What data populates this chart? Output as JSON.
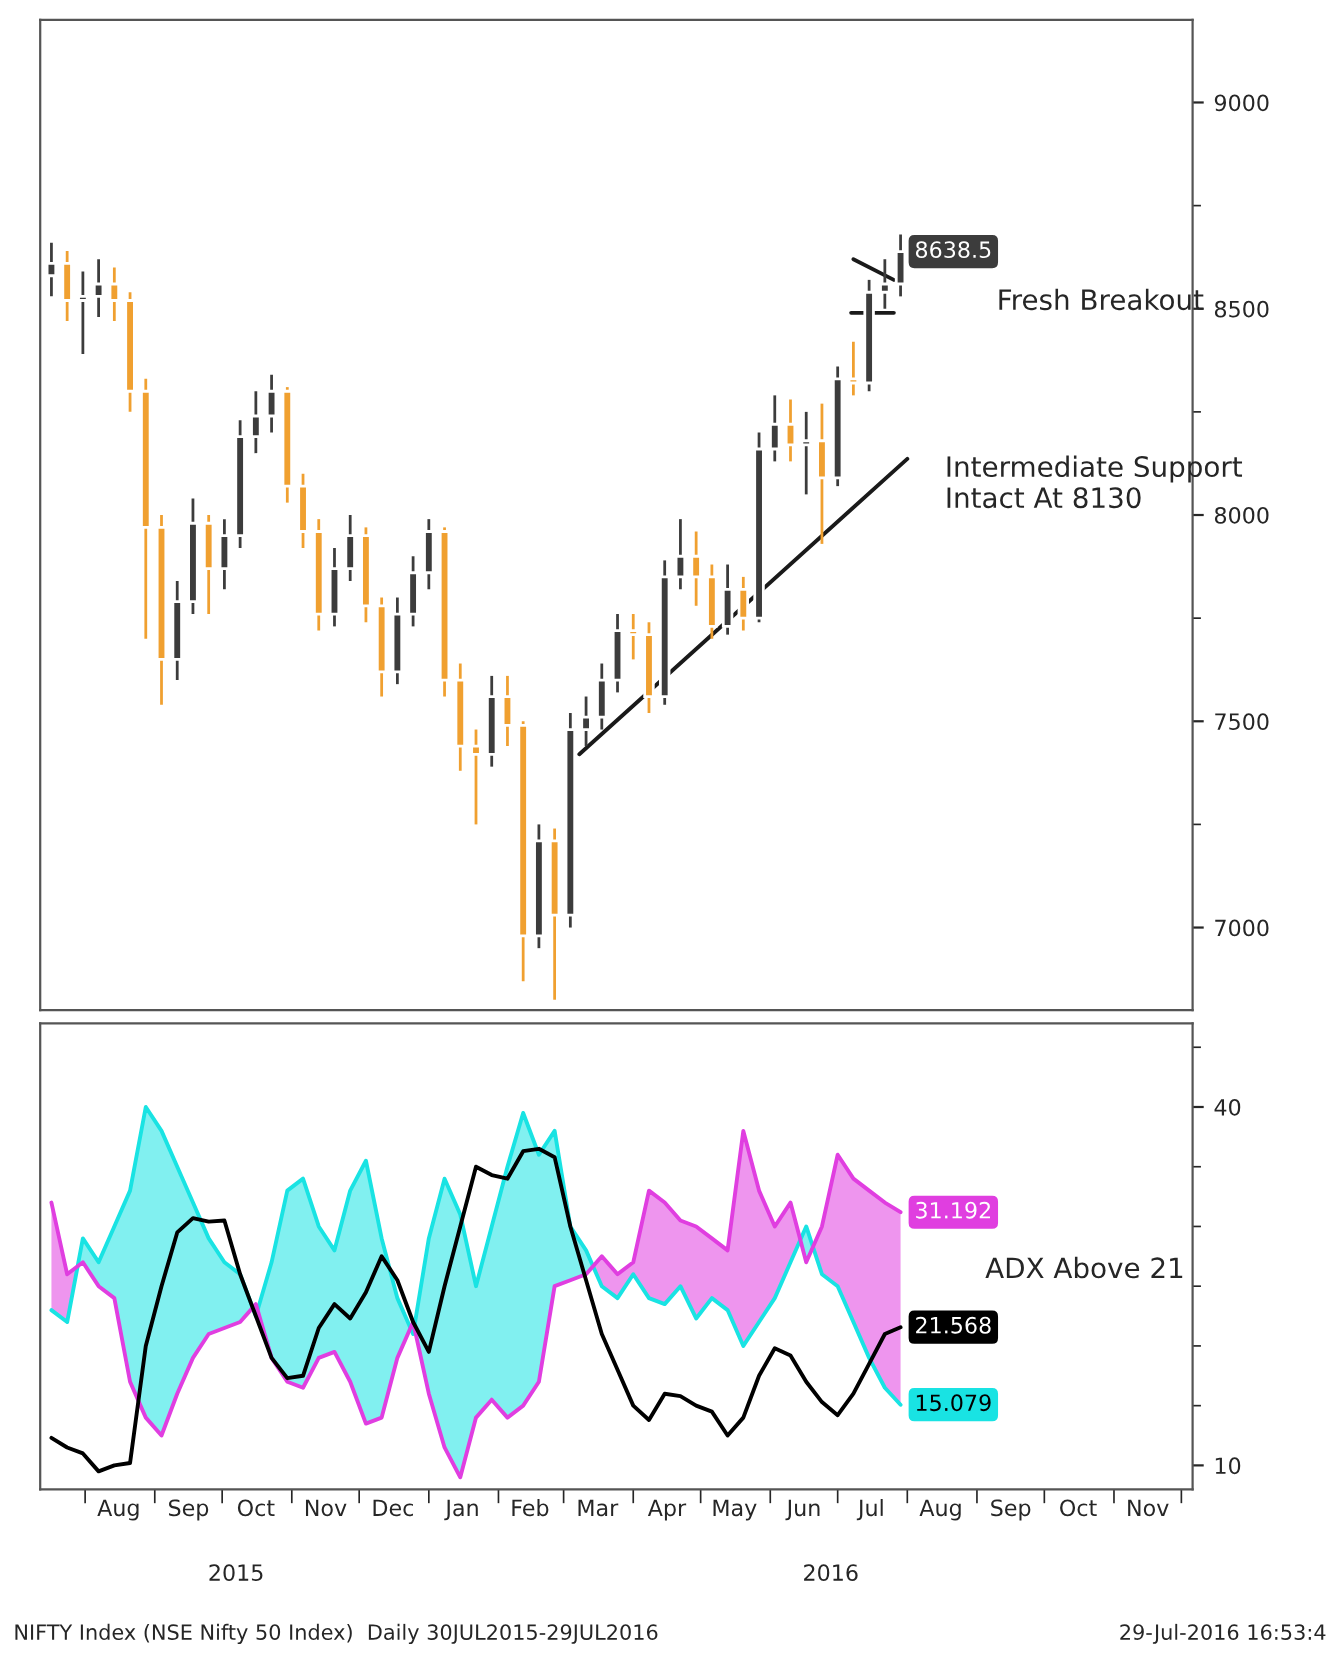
{
  "chart_data": [
    {
      "type": "candlestick",
      "x": [
        "2015-07-17",
        "2015-07-24",
        "2015-07-31",
        "2015-08-07",
        "2015-08-14",
        "2015-08-21",
        "2015-08-28",
        "2015-09-04",
        "2015-09-11",
        "2015-09-18",
        "2015-09-25",
        "2015-10-02",
        "2015-10-09",
        "2015-10-16",
        "2015-10-23",
        "2015-10-30",
        "2015-11-06",
        "2015-11-13",
        "2015-11-20",
        "2015-11-27",
        "2015-12-04",
        "2015-12-11",
        "2015-12-18",
        "2015-12-25",
        "2016-01-01",
        "2016-01-08",
        "2016-01-15",
        "2016-01-22",
        "2016-01-29",
        "2016-02-05",
        "2016-02-12",
        "2016-02-19",
        "2016-02-26",
        "2016-03-04",
        "2016-03-11",
        "2016-03-18",
        "2016-03-25",
        "2016-04-01",
        "2016-04-08",
        "2016-04-15",
        "2016-04-22",
        "2016-04-29",
        "2016-05-06",
        "2016-05-13",
        "2016-05-20",
        "2016-05-27",
        "2016-06-03",
        "2016-06-10",
        "2016-06-17",
        "2016-06-24",
        "2016-07-01",
        "2016-07-08",
        "2016-07-15",
        "2016-07-22",
        "2016-07-29"
      ],
      "ohlc": [
        [
          8580,
          8660,
          8530,
          8610
        ],
        [
          8610,
          8640,
          8470,
          8520
        ],
        [
          8520,
          8590,
          8390,
          8530
        ],
        [
          8530,
          8620,
          8480,
          8560
        ],
        [
          8560,
          8600,
          8470,
          8520
        ],
        [
          8520,
          8540,
          8250,
          8300
        ],
        [
          8300,
          8330,
          7700,
          7970
        ],
        [
          7970,
          8000,
          7540,
          7650
        ],
        [
          7650,
          7840,
          7600,
          7790
        ],
        [
          7790,
          8040,
          7760,
          7980
        ],
        [
          7980,
          8000,
          7760,
          7870
        ],
        [
          7870,
          7990,
          7820,
          7950
        ],
        [
          7950,
          8230,
          7920,
          8190
        ],
        [
          8190,
          8300,
          8150,
          8240
        ],
        [
          8240,
          8340,
          8200,
          8300
        ],
        [
          8300,
          8310,
          8030,
          8070
        ],
        [
          8070,
          8100,
          7920,
          7960
        ],
        [
          7960,
          7990,
          7720,
          7760
        ],
        [
          7760,
          7920,
          7730,
          7870
        ],
        [
          7870,
          8000,
          7840,
          7950
        ],
        [
          7950,
          7970,
          7740,
          7780
        ],
        [
          7780,
          7800,
          7560,
          7620
        ],
        [
          7620,
          7800,
          7590,
          7760
        ],
        [
          7760,
          7900,
          7730,
          7860
        ],
        [
          7860,
          7990,
          7820,
          7960
        ],
        [
          7960,
          7970,
          7560,
          7600
        ],
        [
          7600,
          7640,
          7380,
          7440
        ],
        [
          7440,
          7480,
          7250,
          7420
        ],
        [
          7420,
          7610,
          7390,
          7560
        ],
        [
          7560,
          7610,
          7440,
          7490
        ],
        [
          7490,
          7500,
          6870,
          6980
        ],
        [
          6980,
          7250,
          6950,
          7210
        ],
        [
          7210,
          7240,
          6825,
          7030
        ],
        [
          7030,
          7520,
          7000,
          7480
        ],
        [
          7480,
          7560,
          7440,
          7510
        ],
        [
          7510,
          7640,
          7480,
          7600
        ],
        [
          7600,
          7760,
          7570,
          7720
        ],
        [
          7720,
          7760,
          7650,
          7710
        ],
        [
          7710,
          7740,
          7520,
          7560
        ],
        [
          7560,
          7890,
          7540,
          7850
        ],
        [
          7850,
          7990,
          7820,
          7900
        ],
        [
          7900,
          7960,
          7780,
          7850
        ],
        [
          7850,
          7880,
          7700,
          7730
        ],
        [
          7730,
          7880,
          7710,
          7820
        ],
        [
          7820,
          7850,
          7720,
          7750
        ],
        [
          7750,
          8200,
          7740,
          8160
        ],
        [
          8160,
          8290,
          8130,
          8220
        ],
        [
          8220,
          8280,
          8130,
          8170
        ],
        [
          8170,
          8250,
          8050,
          8180
        ],
        [
          8180,
          8270,
          7930,
          8090
        ],
        [
          8090,
          8360,
          8070,
          8330
        ],
        [
          8330,
          8420,
          8290,
          8320
        ],
        [
          8320,
          8570,
          8300,
          8540
        ],
        [
          8540,
          8620,
          8500,
          8560
        ],
        [
          8560,
          8680,
          8530,
          8638.5
        ]
      ],
      "colors": [
        "#3c3c3c",
        "#f0a030",
        "#3c3c3c",
        "#3c3c3c",
        "#f0a030",
        "#f0a030",
        "#f0a030",
        "#f0a030",
        "#3c3c3c",
        "#3c3c3c",
        "#f0a030",
        "#3c3c3c",
        "#3c3c3c",
        "#3c3c3c",
        "#3c3c3c",
        "#f0a030",
        "#f0a030",
        "#f0a030",
        "#3c3c3c",
        "#3c3c3c",
        "#f0a030",
        "#f0a030",
        "#3c3c3c",
        "#3c3c3c",
        "#3c3c3c",
        "#f0a030",
        "#f0a030",
        "#f0a030",
        "#3c3c3c",
        "#f0a030",
        "#f0a030",
        "#3c3c3c",
        "#f0a030",
        "#3c3c3c",
        "#3c3c3c",
        "#3c3c3c",
        "#3c3c3c",
        "#f0a030",
        "#f0a030",
        "#3c3c3c",
        "#3c3c3c",
        "#f0a030",
        "#f0a030",
        "#3c3c3c",
        "#f0a030",
        "#3c3c3c",
        "#3c3c3c",
        "#f0a030",
        "#3c3c3c",
        "#f0a030",
        "#3c3c3c",
        "#f0a030",
        "#3c3c3c",
        "#3c3c3c",
        "#3c3c3c"
      ],
      "value_labels": [
        null,
        null,
        null,
        null,
        null,
        null,
        null,
        null,
        null,
        null,
        null,
        null,
        null,
        null,
        null,
        null,
        null,
        null,
        null,
        null,
        null,
        null,
        null,
        null,
        null,
        null,
        null,
        null,
        null,
        null,
        null,
        null,
        null,
        null,
        null,
        null,
        null,
        null,
        null,
        null,
        null,
        null,
        null,
        null,
        null,
        null,
        null,
        null,
        null,
        null,
        null,
        null,
        null,
        null,
        "8638.5"
      ],
      "series": [
        {
          "type": "line",
          "color": "#1a1a1a",
          "x": [
            "2016-03-08",
            "2016-08-01"
          ],
          "values": [
            7420,
            8136
          ]
        },
        {
          "type": "line",
          "color": "#1a1a1a",
          "x": [
            "2016-07-07",
            "2016-07-26"
          ],
          "values": [
            8490,
            8490
          ]
        },
        {
          "type": "line",
          "color": "#1a1a1a",
          "x": [
            "2016-07-08",
            "2016-07-26"
          ],
          "values": [
            8620,
            8570
          ]
        }
      ],
      "annotations": [
        "Fresh Breakout",
        "Intermediate Support\nIntact At 8130"
      ],
      "xlim": [
        "2015-07-12",
        "2016-12-06"
      ],
      "ylim": [
        6800,
        9200
      ],
      "yticks": [
        7000,
        {
          "value": 7250,
          "label": null
        },
        7500,
        {
          "value": 7750,
          "label": null
        },
        8000,
        {
          "value": 8250,
          "label": null
        },
        8500,
        {
          "value": 8750,
          "label": null
        },
        9000
      ],
      "tick_labels": "y",
      "grid": false,
      "legend": false
    },
    {
      "type": "line",
      "x": [
        "2015-07-17",
        "2015-07-24",
        "2015-07-31",
        "2015-08-07",
        "2015-08-14",
        "2015-08-21",
        "2015-08-28",
        "2015-09-04",
        "2015-09-11",
        "2015-09-18",
        "2015-09-25",
        "2015-10-02",
        "2015-10-09",
        "2015-10-16",
        "2015-10-23",
        "2015-10-30",
        "2015-11-06",
        "2015-11-13",
        "2015-11-20",
        "2015-11-27",
        "2015-12-04",
        "2015-12-11",
        "2015-12-18",
        "2015-12-25",
        "2016-01-01",
        "2016-01-08",
        "2016-01-15",
        "2016-01-22",
        "2016-01-29",
        "2016-02-05",
        "2016-02-12",
        "2016-02-19",
        "2016-02-26",
        "2016-03-04",
        "2016-03-11",
        "2016-03-18",
        "2016-03-25",
        "2016-04-01",
        "2016-04-08",
        "2016-04-15",
        "2016-04-22",
        "2016-04-29",
        "2016-05-06",
        "2016-05-13",
        "2016-05-20",
        "2016-05-27",
        "2016-06-03",
        "2016-06-10",
        "2016-06-17",
        "2016-06-24",
        "2016-07-01",
        "2016-07-08",
        "2016-07-15",
        "2016-07-22",
        "2016-07-29"
      ],
      "series": [
        {
          "type": "line",
          "color": "#19e3e3",
          "values": [
            23,
            22,
            29,
            27,
            30,
            33,
            40,
            38,
            35,
            32,
            29,
            27,
            26,
            22.5,
            27,
            33,
            34,
            30,
            28,
            33,
            35.5,
            29,
            24,
            21,
            29,
            34,
            31,
            25,
            30,
            35,
            39.5,
            36,
            38,
            30,
            28,
            25,
            24,
            26,
            24,
            23.5,
            25,
            22.3,
            24,
            23,
            20,
            22,
            24,
            27,
            30,
            26,
            25,
            22,
            19,
            16.5,
            15.079
          ],
          "value_labels": [
            null,
            null,
            null,
            null,
            null,
            null,
            null,
            null,
            null,
            null,
            null,
            null,
            null,
            null,
            null,
            null,
            null,
            null,
            null,
            null,
            null,
            null,
            null,
            null,
            null,
            null,
            null,
            null,
            null,
            null,
            null,
            null,
            null,
            null,
            null,
            null,
            null,
            null,
            null,
            null,
            null,
            null,
            null,
            null,
            null,
            null,
            null,
            null,
            null,
            null,
            null,
            null,
            null,
            null,
            "15.079"
          ]
        },
        {
          "type": "line",
          "color": "#e03ee0",
          "values": [
            32,
            26,
            27,
            25,
            24,
            17,
            14,
            12.5,
            16,
            19,
            21,
            21.5,
            22,
            23.5,
            19,
            17,
            16.5,
            19,
            19.5,
            17,
            13.5,
            14,
            19,
            22,
            16,
            11.5,
            9,
            14,
            15.5,
            14,
            15,
            17,
            25,
            25.5,
            26,
            27.5,
            26,
            27,
            33,
            32,
            30.5,
            30,
            29,
            28,
            38,
            33,
            30,
            32,
            27,
            30,
            36,
            34,
            33,
            32,
            31.192
          ],
          "value_labels": [
            null,
            null,
            null,
            null,
            null,
            null,
            null,
            null,
            null,
            null,
            null,
            null,
            null,
            null,
            null,
            null,
            null,
            null,
            null,
            null,
            null,
            null,
            null,
            null,
            null,
            null,
            null,
            null,
            null,
            null,
            null,
            null,
            null,
            null,
            null,
            null,
            null,
            null,
            null,
            null,
            null,
            null,
            null,
            null,
            null,
            null,
            null,
            null,
            null,
            null,
            null,
            null,
            null,
            null,
            "31.192"
          ]
        },
        {
          "type": "line",
          "color": "#000000",
          "values": [
            12.3,
            11.5,
            11,
            9.5,
            10,
            10.2,
            20,
            25,
            29.5,
            30.7,
            30.4,
            30.5,
            26,
            22.5,
            19,
            17.3,
            17.5,
            21.5,
            23.5,
            22.3,
            24.5,
            27.5,
            25.5,
            22,
            19.5,
            25,
            30,
            35,
            34.3,
            34,
            36.3,
            36.5,
            35.8,
            30,
            25.5,
            21,
            18,
            15,
            13.8,
            16,
            15.8,
            15,
            14.5,
            12.5,
            14,
            17.5,
            19.8,
            19.2,
            17,
            15.3,
            14.2,
            16,
            18.5,
            21,
            21.568
          ],
          "value_labels": [
            null,
            null,
            null,
            null,
            null,
            null,
            null,
            null,
            null,
            null,
            null,
            null,
            null,
            null,
            null,
            null,
            null,
            null,
            null,
            null,
            null,
            null,
            null,
            null,
            null,
            null,
            null,
            null,
            null,
            null,
            null,
            null,
            null,
            null,
            null,
            null,
            null,
            null,
            null,
            null,
            null,
            null,
            null,
            null,
            null,
            null,
            null,
            null,
            null,
            null,
            null,
            null,
            null,
            null,
            "21.568"
          ]
        }
      ],
      "annotations": [
        "NIFTY Index (NSE Nifty 50 Index)  Daily 30JUL2015-29JUL2016",
        "ADX Above 21",
        "2015",
        "2016",
        "29-Jul-2016 16:53:4"
      ],
      "xlim": [
        "2015-07-12",
        "2016-12-06"
      ],
      "xticks": [
        {
          "value": "2015-08-01",
          "label": null
        },
        {
          "value": "2015-08-16",
          "label": "Aug"
        },
        {
          "value": "2015-09-01",
          "label": null
        },
        {
          "value": "2015-09-16",
          "label": "Sep"
        },
        {
          "value": "2015-10-01",
          "label": null
        },
        {
          "value": "2015-10-16",
          "label": "Oct"
        },
        {
          "value": "2015-11-01",
          "label": null
        },
        {
          "value": "2015-11-16",
          "label": "Nov"
        },
        {
          "value": "2015-12-01",
          "label": null
        },
        {
          "value": "2015-12-16",
          "label": "Dec"
        },
        {
          "value": "2016-01-01",
          "label": null
        },
        {
          "value": "2016-01-16",
          "label": "Jan"
        },
        {
          "value": "2016-02-01",
          "label": null
        },
        {
          "value": "2016-02-15",
          "label": "Feb"
        },
        {
          "value": "2016-03-01",
          "label": null
        },
        {
          "value": "2016-03-16",
          "label": "Mar"
        },
        {
          "value": "2016-04-01",
          "label": null
        },
        {
          "value": "2016-04-16",
          "label": "Apr"
        },
        {
          "value": "2016-05-01",
          "label": null
        },
        {
          "value": "2016-05-16",
          "label": "May"
        },
        {
          "value": "2016-06-01",
          "label": null
        },
        {
          "value": "2016-06-16",
          "label": "Jun"
        },
        {
          "value": "2016-07-01",
          "label": null
        },
        {
          "value": "2016-07-16",
          "label": "Jul"
        },
        {
          "value": "2016-08-01",
          "label": null
        },
        {
          "value": "2016-08-16",
          "label": "Aug"
        },
        {
          "value": "2016-09-01",
          "label": null
        },
        {
          "value": "2016-09-16",
          "label": "Sep"
        },
        {
          "value": "2016-10-01",
          "label": null
        },
        {
          "value": "2016-10-16",
          "label": "Oct"
        },
        {
          "value": "2016-11-01",
          "label": null
        },
        {
          "value": "2016-11-16",
          "label": "Nov"
        },
        {
          "value": "2016-12-01",
          "label": null
        }
      ],
      "ylim": [
        8,
        47
      ],
      "yticks": [
        10,
        {
          "value": 15,
          "label": null
        },
        {
          "value": 20,
          "label": null
        },
        {
          "value": 25,
          "label": null
        },
        {
          "value": 30,
          "label": null
        },
        {
          "value": 35,
          "label": null
        },
        40,
        {
          "value": 45,
          "label": null
        }
      ],
      "grid": false,
      "legend": false
    }
  ]
}
